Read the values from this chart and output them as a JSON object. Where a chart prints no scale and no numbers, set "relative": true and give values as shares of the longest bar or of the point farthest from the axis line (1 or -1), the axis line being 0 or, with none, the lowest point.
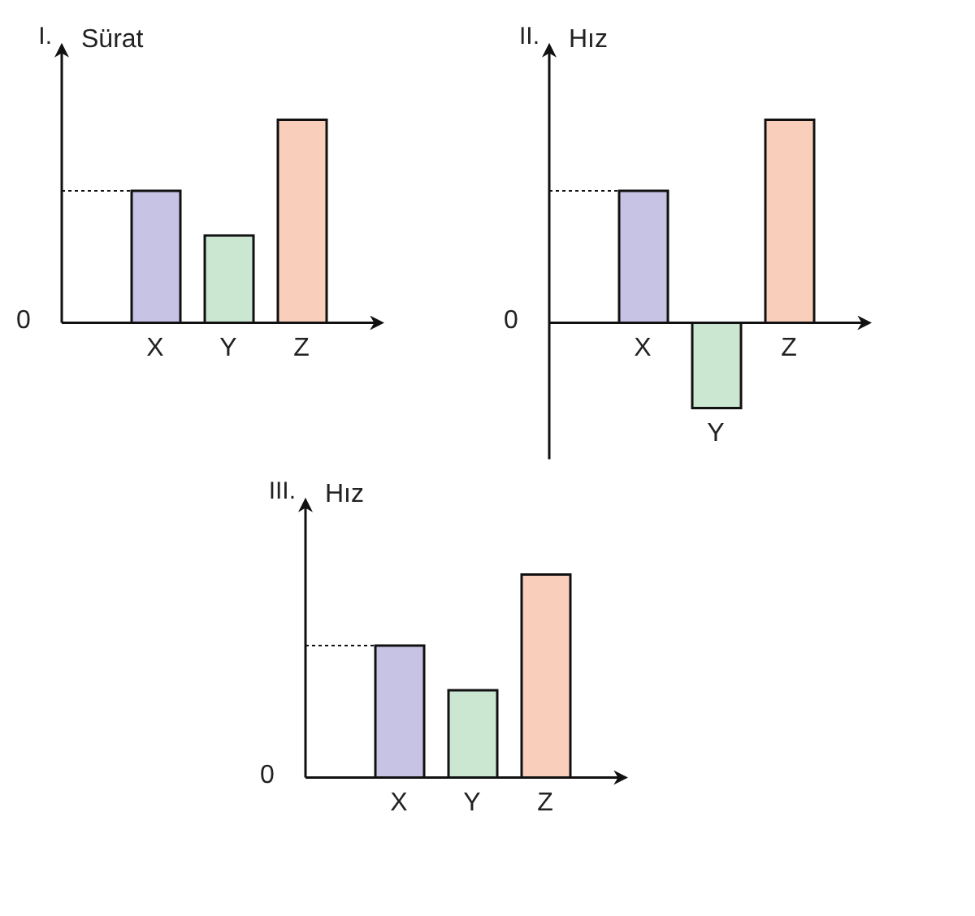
{
  "chart_data": [
    {
      "type": "bar",
      "title": "I.",
      "ylabel": "Sürat",
      "relative": true,
      "categories": [
        "X",
        "Y",
        "Z"
      ],
      "values": [
        0.65,
        0.43,
        1
      ],
      "colors": [
        "#c6c3e4",
        "#cce7d1",
        "#f9cfbc"
      ],
      "ref_lines": [
        {
          "axis": "y",
          "value": 0.65,
          "line_style": "dotted"
        }
      ],
      "annotations": [
        "0"
      ]
    },
    {
      "type": "bar",
      "title": "II.",
      "ylabel": "Hız",
      "relative": true,
      "categories": [
        "X",
        "Y",
        "Z"
      ],
      "values": [
        0.65,
        -0.42,
        1
      ],
      "colors": [
        "#c6c3e4",
        "#cce7d1",
        "#f9cfbc"
      ],
      "ref_lines": [
        {
          "axis": "y",
          "value": 0.65,
          "line_style": "dotted"
        }
      ],
      "annotations": [
        "0"
      ]
    },
    {
      "type": "bar",
      "title": "III.",
      "ylabel": "Hız",
      "relative": true,
      "categories": [
        "X",
        "Y",
        "Z"
      ],
      "values": [
        0.65,
        0.43,
        1
      ],
      "colors": [
        "#c6c3e4",
        "#cce7d1",
        "#f9cfbc"
      ],
      "ref_lines": [
        {
          "axis": "y",
          "value": 0.65,
          "line_style": "dotted"
        }
      ],
      "annotations": [
        "0"
      ]
    }
  ]
}
